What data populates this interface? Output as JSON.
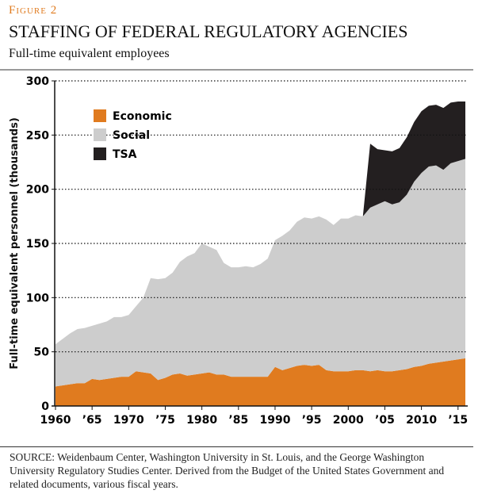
{
  "figure_label": "Figure 2",
  "chart_data": {
    "type": "stacked-area",
    "title": "STAFFING OF FEDERAL REGULATORY AGENCIES",
    "subtitle": "Full-time equivalent employees",
    "y_label": "Full-time equivalent personnel (thousands)",
    "x": [
      1960,
      1961,
      1962,
      1963,
      1964,
      1965,
      1966,
      1967,
      1968,
      1969,
      1970,
      1971,
      1972,
      1973,
      1974,
      1975,
      1976,
      1977,
      1978,
      1979,
      1980,
      1981,
      1982,
      1983,
      1984,
      1985,
      1986,
      1987,
      1988,
      1989,
      1990,
      1991,
      1992,
      1993,
      1994,
      1995,
      1996,
      1997,
      1998,
      1999,
      2000,
      2001,
      2002,
      2003,
      2004,
      2005,
      2006,
      2007,
      2008,
      2009,
      2010,
      2011,
      2012,
      2013,
      2014,
      2015,
      2016
    ],
    "series": [
      {
        "name": "Economic",
        "color": "#e07b1f",
        "values": [
          18,
          19,
          20,
          21,
          21,
          25,
          24,
          25,
          26,
          27,
          27,
          32,
          31,
          30,
          24,
          26,
          29,
          30,
          28,
          29,
          30,
          31,
          29,
          29,
          27,
          27,
          27,
          27,
          27,
          27,
          36,
          33,
          35,
          37,
          38,
          37,
          38,
          33,
          32,
          32,
          32,
          33,
          33,
          32,
          33,
          32,
          32,
          33,
          34,
          36,
          37,
          39,
          40,
          41,
          42,
          43,
          44
        ]
      },
      {
        "name": "Social",
        "color": "#cdcdcd",
        "values": [
          39,
          43,
          47,
          50,
          51,
          49,
          52,
          53,
          56,
          55,
          57,
          60,
          69,
          88,
          93,
          92,
          94,
          103,
          110,
          112,
          120,
          116,
          115,
          103,
          101,
          101,
          102,
          101,
          104,
          109,
          117,
          124,
          127,
          133,
          136,
          136,
          137,
          139,
          135,
          141,
          141,
          143,
          142,
          151,
          153,
          157,
          154,
          155,
          161,
          171,
          178,
          182,
          182,
          177,
          182,
          183,
          184
        ]
      },
      {
        "name": "TSA",
        "color": "#231f20",
        "values": [
          0,
          0,
          0,
          0,
          0,
          0,
          0,
          0,
          0,
          0,
          0,
          0,
          0,
          0,
          0,
          0,
          0,
          0,
          0,
          0,
          0,
          0,
          0,
          0,
          0,
          0,
          0,
          0,
          0,
          0,
          0,
          0,
          0,
          0,
          0,
          0,
          0,
          0,
          0,
          0,
          0,
          0,
          0,
          59,
          51,
          47,
          49,
          50,
          53,
          55,
          57,
          56,
          56,
          57,
          56,
          55,
          53
        ]
      }
    ],
    "xlim": [
      1960,
      2016
    ],
    "xticks": [
      1960,
      {
        "value": 1965,
        "label": "’65"
      },
      1970,
      {
        "value": 1975,
        "label": "’75"
      },
      1980,
      {
        "value": 1985,
        "label": "’85"
      },
      1990,
      {
        "value": 1995,
        "label": "’95"
      },
      2000,
      {
        "value": 2005,
        "label": "’05"
      },
      2010,
      {
        "value": 2015,
        "label": "’15"
      }
    ],
    "ylim": [
      0,
      300
    ],
    "yticks": [
      0,
      50,
      100,
      150,
      200,
      250,
      300
    ],
    "grid": true,
    "legend": "upper-left"
  },
  "source": "SOURCE: Weidenbaum Center, Washington University in St. Louis, and the George Washington University Regulatory Studies Center. Derived from the Budget of the United States Government and related documents, various fiscal years."
}
